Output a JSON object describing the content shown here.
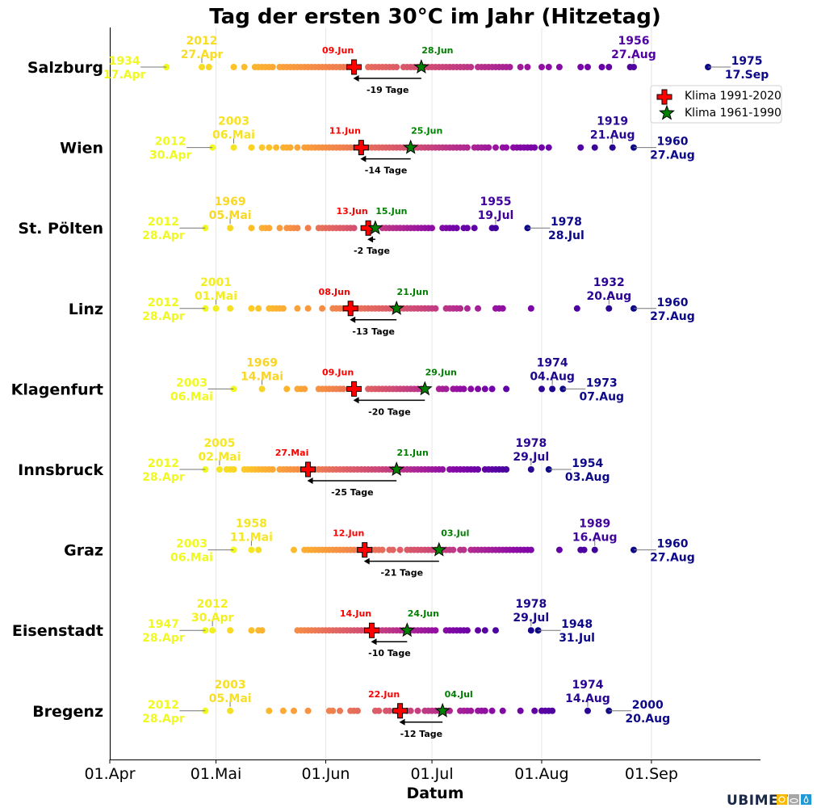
{
  "chart_data": {
    "type": "scatter",
    "title": "Tag der ersten 30°C im Jahr (Hitzetag)",
    "xlabel": "Datum",
    "ylabel": "",
    "x_ticks": [
      "01.Apr",
      "01.Mai",
      "01.Jun",
      "01.Jul",
      "01.Aug",
      "01.Sep"
    ],
    "xlim": [
      "01.Apr",
      "02.Okt"
    ],
    "grid": "vertical",
    "colormap": "plasma (early = yellow, late = dark blue)",
    "legend": {
      "placement": "top-right",
      "entries": [
        {
          "label": "Klima 1991-2020",
          "marker": "cross",
          "color": "#ff0000"
        },
        {
          "label": "Klima 1961-1990",
          "marker": "star",
          "color": "#008000"
        }
      ]
    },
    "stations": [
      {
        "name": "Salzburg",
        "first": {
          "year": "1934",
          "date": "17.Apr"
        },
        "second": {
          "year": "2012",
          "date": "27.Apr"
        },
        "second_last": {
          "year": "1956",
          "date": "27.Aug"
        },
        "last": {
          "year": "1975",
          "date": "17.Sep"
        },
        "klima_1991_2020": "09.Jun",
        "klima_1961_1990": "28.Jun",
        "diff": "-19 Tage",
        "dates": [
          "04-17",
          "04-27",
          "04-29",
          "05-06",
          "05-09",
          "05-12",
          "05-13",
          "05-14",
          "05-15",
          "05-16",
          "05-17",
          "05-19",
          "05-20",
          "05-21",
          "05-22",
          "05-23",
          "05-24",
          "05-25",
          "05-26",
          "05-27",
          "05-28",
          "05-29",
          "05-30",
          "05-31",
          "06-01",
          "06-02",
          "06-03",
          "06-04",
          "06-05",
          "06-06",
          "06-07",
          "06-08",
          "06-13",
          "06-14",
          "06-15",
          "06-16",
          "06-17",
          "06-18",
          "06-19",
          "06-20",
          "06-21",
          "06-23",
          "06-24",
          "06-25",
          "06-26",
          "06-27",
          "06-29",
          "06-30",
          "07-01",
          "07-02",
          "07-03",
          "07-04",
          "07-05",
          "07-06",
          "07-07",
          "07-08",
          "07-09",
          "07-10",
          "07-11",
          "07-12",
          "07-14",
          "07-15",
          "07-16",
          "07-17",
          "07-18",
          "07-19",
          "07-20",
          "07-21",
          "07-22",
          "07-23",
          "07-26",
          "07-28",
          "08-01",
          "08-03",
          "08-06",
          "08-12",
          "08-14",
          "08-18",
          "08-20",
          "08-26",
          "08-27",
          "09-17"
        ]
      },
      {
        "name": "Wien",
        "first": {
          "year": "2012",
          "date": "30.Apr"
        },
        "second": {
          "year": "2003",
          "date": "06.Mai"
        },
        "second_last": {
          "year": "1919",
          "date": "21.Aug"
        },
        "last": {
          "year": "1960",
          "date": "27.Aug"
        },
        "klima_1991_2020": "11.Jun",
        "klima_1961_1990": "25.Jun",
        "diff": "-14 Tage",
        "dates": [
          "04-30",
          "05-06",
          "05-11",
          "05-14",
          "05-16",
          "05-18",
          "05-20",
          "05-21",
          "05-22",
          "05-24",
          "05-26",
          "05-27",
          "05-28",
          "05-29",
          "05-30",
          "05-31",
          "06-01",
          "06-02",
          "06-03",
          "06-04",
          "06-05",
          "06-06",
          "06-07",
          "06-08",
          "06-09",
          "06-10",
          "06-11",
          "06-12",
          "06-13",
          "06-14",
          "06-15",
          "06-16",
          "06-17",
          "06-18",
          "06-19",
          "06-20",
          "06-21",
          "06-22",
          "06-23",
          "06-24",
          "06-25",
          "06-26",
          "06-27",
          "06-28",
          "06-29",
          "06-30",
          "07-01",
          "07-02",
          "07-03",
          "07-04",
          "07-05",
          "07-06",
          "07-07",
          "07-08",
          "07-09",
          "07-10",
          "07-11",
          "07-13",
          "07-14",
          "07-15",
          "07-16",
          "07-17",
          "07-19",
          "07-21",
          "07-22",
          "07-24",
          "07-25",
          "07-26",
          "07-27",
          "07-28",
          "07-29",
          "07-30",
          "08-01",
          "08-03",
          "08-12",
          "08-16",
          "08-21",
          "08-27"
        ]
      },
      {
        "name": "St. Pölten",
        "first": {
          "year": "2012",
          "date": "28.Apr"
        },
        "second": {
          "year": "1969",
          "date": "05.Mai"
        },
        "second_last": {
          "year": "1955",
          "date": "19.Jul"
        },
        "last": {
          "year": "1978",
          "date": "28.Jul"
        },
        "klima_1991_2020": "13.Jun",
        "klima_1961_1990": "15.Jun",
        "diff": "-2 Tage",
        "dates": [
          "04-28",
          "05-05",
          "05-11",
          "05-14",
          "05-15",
          "05-16",
          "05-19",
          "05-21",
          "05-22",
          "05-23",
          "05-24",
          "05-27",
          "05-30",
          "05-31",
          "06-01",
          "06-02",
          "06-03",
          "06-04",
          "06-05",
          "06-06",
          "06-07",
          "06-08",
          "06-09",
          "06-13",
          "06-17",
          "06-18",
          "06-19",
          "06-20",
          "06-21",
          "06-22",
          "06-23",
          "06-24",
          "06-25",
          "06-26",
          "06-27",
          "06-28",
          "06-29",
          "06-30",
          "07-01",
          "07-04",
          "07-05",
          "07-06",
          "07-07",
          "07-08",
          "07-10",
          "07-11",
          "07-13",
          "07-18",
          "07-19",
          "07-28"
        ]
      },
      {
        "name": "Linz",
        "first": {
          "year": "2012",
          "date": "28.Apr"
        },
        "second": {
          "year": "2001",
          "date": "01.Mai"
        },
        "second_last": {
          "year": "1932",
          "date": "20.Aug"
        },
        "last": {
          "year": "1960",
          "date": "27.Aug"
        },
        "klima_1991_2020": "08.Jun",
        "klima_1961_1990": "21.Jun",
        "diff": "-13 Tage",
        "dates": [
          "04-28",
          "05-01",
          "05-05",
          "05-11",
          "05-13",
          "05-16",
          "05-17",
          "05-18",
          "05-19",
          "05-20",
          "05-24",
          "05-27",
          "05-31",
          "06-03",
          "06-04",
          "06-05",
          "06-06",
          "06-07",
          "06-08",
          "06-09",
          "06-10",
          "06-11",
          "06-12",
          "06-13",
          "06-14",
          "06-15",
          "06-16",
          "06-17",
          "06-18",
          "06-19",
          "06-20",
          "06-21",
          "06-22",
          "06-23",
          "06-24",
          "06-25",
          "06-26",
          "06-27",
          "06-28",
          "06-29",
          "06-30",
          "07-01",
          "07-02",
          "07-05",
          "07-06",
          "07-07",
          "07-08",
          "07-09",
          "07-11",
          "07-14",
          "07-19",
          "07-20",
          "07-21",
          "07-29",
          "08-11",
          "08-20",
          "08-27"
        ]
      },
      {
        "name": "Klagenfurt",
        "first": {
          "year": "2003",
          "date": "06.Mai"
        },
        "second": {
          "year": "1969",
          "date": "14.Mai"
        },
        "second_last": {
          "year": "1974",
          "date": "04.Aug"
        },
        "last": {
          "year": "1973",
          "date": "07.Aug"
        },
        "klima_1991_2020": "09.Jun",
        "klima_1961_1990": "29.Jun",
        "diff": "-20 Tage",
        "dates": [
          "05-06",
          "05-14",
          "05-21",
          "05-24",
          "05-25",
          "05-26",
          "05-30",
          "05-31",
          "06-01",
          "06-02",
          "06-03",
          "06-04",
          "06-05",
          "06-06",
          "06-13",
          "06-14",
          "06-15",
          "06-16",
          "06-17",
          "06-18",
          "06-19",
          "06-20",
          "06-21",
          "06-22",
          "06-23",
          "06-24",
          "06-25",
          "06-26",
          "06-27",
          "06-28",
          "07-03",
          "07-04",
          "07-05",
          "07-07",
          "07-08",
          "07-09",
          "07-10",
          "07-12",
          "07-14",
          "07-16",
          "07-18",
          "07-22",
          "08-01",
          "08-04",
          "08-07"
        ]
      },
      {
        "name": "Innsbruck",
        "first": {
          "year": "2012",
          "date": "28.Apr"
        },
        "second": {
          "year": "2005",
          "date": "02.Mai"
        },
        "second_last": {
          "year": "1978",
          "date": "29.Jul"
        },
        "last": {
          "year": "1954",
          "date": "03.Aug"
        },
        "klima_1991_2020": "27.Mai",
        "klima_1961_1990": "21.Jun",
        "diff": "-25 Tage",
        "dates": [
          "04-28",
          "05-02",
          "05-04",
          "05-05",
          "05-06",
          "05-09",
          "05-10",
          "05-11",
          "05-12",
          "05-13",
          "05-14",
          "05-15",
          "05-16",
          "05-17",
          "05-19",
          "05-20",
          "05-21",
          "05-22",
          "05-23",
          "05-24",
          "05-25",
          "05-26",
          "05-27",
          "05-28",
          "05-29",
          "05-30",
          "05-31",
          "06-01",
          "06-02",
          "06-03",
          "06-04",
          "06-05",
          "06-06",
          "06-07",
          "06-08",
          "06-09",
          "06-10",
          "06-11",
          "06-12",
          "06-13",
          "06-14",
          "06-15",
          "06-16",
          "06-17",
          "06-18",
          "06-19",
          "06-20",
          "06-21",
          "06-22",
          "06-23",
          "06-24",
          "06-25",
          "06-26",
          "06-27",
          "06-28",
          "06-29",
          "06-30",
          "07-01",
          "07-02",
          "07-03",
          "07-04",
          "07-06",
          "07-07",
          "07-08",
          "07-09",
          "07-10",
          "07-11",
          "07-12",
          "07-13",
          "07-14",
          "07-16",
          "07-17",
          "07-18",
          "07-19",
          "07-20",
          "07-21",
          "07-22",
          "07-29",
          "08-03"
        ]
      },
      {
        "name": "Graz",
        "first": {
          "year": "2003",
          "date": "06.Mai"
        },
        "second": {
          "year": "1958",
          "date": "11.Mai"
        },
        "second_last": {
          "year": "1989",
          "date": "16.Aug"
        },
        "last": {
          "year": "1960",
          "date": "27.Aug"
        },
        "klima_1991_2020": "12.Jun",
        "klima_1961_1990": "03.Jul",
        "diff": "-21 Tage",
        "dates": [
          "05-06",
          "05-11",
          "05-13",
          "05-23",
          "05-26",
          "05-27",
          "05-28",
          "05-29",
          "05-30",
          "05-31",
          "06-01",
          "06-02",
          "06-03",
          "06-04",
          "06-05",
          "06-06",
          "06-07",
          "06-08",
          "06-09",
          "06-10",
          "06-11",
          "06-13",
          "06-14",
          "06-15",
          "06-16",
          "06-17",
          "06-19",
          "06-20",
          "06-22",
          "06-24",
          "06-25",
          "06-26",
          "06-27",
          "06-28",
          "06-29",
          "06-30",
          "07-01",
          "07-02",
          "07-04",
          "07-05",
          "07-06",
          "07-07",
          "07-09",
          "07-10",
          "07-12",
          "07-13",
          "07-14",
          "07-15",
          "07-16",
          "07-17",
          "07-18",
          "07-19",
          "07-20",
          "07-21",
          "07-22",
          "07-23",
          "07-24",
          "07-25",
          "07-26",
          "07-27",
          "07-28",
          "07-29",
          "08-06",
          "08-12",
          "08-13",
          "08-16",
          "08-27"
        ]
      },
      {
        "name": "Eisenstadt",
        "first": {
          "year": "1947",
          "date": "28.Apr"
        },
        "second": {
          "year": "2012",
          "date": "30.Apr"
        },
        "second_last": {
          "year": "1978",
          "date": "29.Jul"
        },
        "last": {
          "year": "1948",
          "date": "31.Jul"
        },
        "klima_1991_2020": "14.Jun",
        "klima_1961_1990": "24.Jun",
        "diff": "-10 Tage",
        "dates": [
          "04-28",
          "04-30",
          "05-05",
          "05-11",
          "05-13",
          "05-14",
          "05-24",
          "05-25",
          "05-26",
          "05-27",
          "05-28",
          "05-29",
          "05-30",
          "05-31",
          "06-01",
          "06-02",
          "06-03",
          "06-04",
          "06-05",
          "06-06",
          "06-07",
          "06-08",
          "06-09",
          "06-10",
          "06-11",
          "06-12",
          "06-13",
          "06-14",
          "06-15",
          "06-16",
          "06-17",
          "06-18",
          "06-19",
          "06-20",
          "06-21",
          "06-22",
          "06-23",
          "06-25",
          "06-26",
          "06-27",
          "06-28",
          "06-29",
          "06-30",
          "07-01",
          "07-02",
          "07-05",
          "07-06",
          "07-07",
          "07-08",
          "07-09",
          "07-10",
          "07-11",
          "07-14",
          "07-16",
          "07-19",
          "07-29",
          "07-31"
        ]
      },
      {
        "name": "Bregenz",
        "first": {
          "year": "2012",
          "date": "28.Apr"
        },
        "second": {
          "year": "2003",
          "date": "05.Mai"
        },
        "second_last": {
          "year": "1974",
          "date": "14.Aug"
        },
        "last": {
          "year": "2000",
          "date": "20.Aug"
        },
        "klima_1991_2020": "22.Jun",
        "klima_1961_1990": "04.Jul",
        "diff": "-12 Tage",
        "dates": [
          "04-28",
          "05-05",
          "05-16",
          "05-20",
          "05-23",
          "05-27",
          "06-02",
          "06-03",
          "06-05",
          "06-08",
          "06-09",
          "06-10",
          "06-15",
          "06-16",
          "06-18",
          "06-19",
          "06-21",
          "06-22",
          "06-24",
          "06-25",
          "06-27",
          "06-29",
          "06-30",
          "07-01",
          "07-02",
          "07-03",
          "07-05",
          "07-06",
          "07-09",
          "07-10",
          "07-11",
          "07-12",
          "07-14",
          "07-15",
          "07-16",
          "07-18",
          "07-21",
          "07-26",
          "07-30",
          "08-01",
          "08-02",
          "08-03",
          "08-04",
          "08-14",
          "08-20"
        ]
      }
    ]
  },
  "logo": {
    "text": "UBIMET",
    "icons": [
      "sun-icon",
      "cloud-icon",
      "drop-icon"
    ],
    "colors": [
      "#f9b800",
      "#a6a6a6",
      "#1e9ad6"
    ]
  }
}
